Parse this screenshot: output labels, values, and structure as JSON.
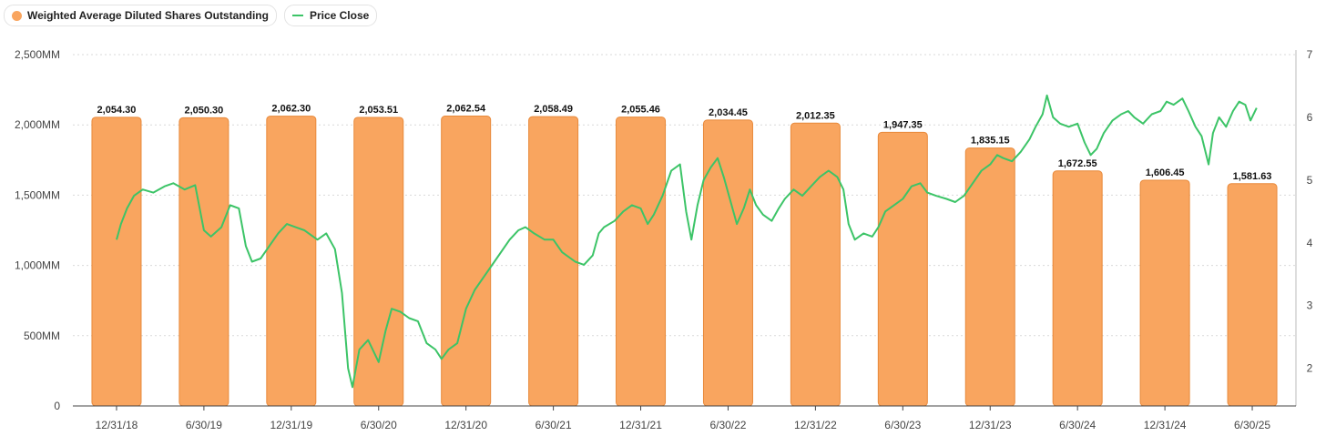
{
  "legend": {
    "bars_label": "Weighted Average Diluted Shares Outstanding",
    "line_label": "Price Close"
  },
  "colors": {
    "bar_fill": "#F9A55F",
    "bar_stroke": "#E8893A",
    "line": "#3CC467",
    "grid": "#D9D9D9",
    "axis_text": "#444444"
  },
  "chart_data": {
    "type": "bar",
    "categories": [
      "12/31/18",
      "6/30/19",
      "12/31/19",
      "6/30/20",
      "12/31/20",
      "6/30/21",
      "12/31/21",
      "6/30/22",
      "12/31/22",
      "6/30/23",
      "12/31/23",
      "6/30/24",
      "12/31/24",
      "6/30/25"
    ],
    "data_labels": [
      "2,054.30",
      "2,050.30",
      "2,062.30",
      "2,053.51",
      "2,062.54",
      "2,058.49",
      "2,055.46",
      "2,034.45",
      "2,012.35",
      "1,947.35",
      "1,835.15",
      "1,672.55",
      "1,606.45",
      "1,581.63"
    ],
    "series": [
      {
        "name": "Weighted Average Diluted Shares Outstanding",
        "type": "bar",
        "axis": "left",
        "values": [
          2054.3,
          2050.3,
          2062.3,
          2053.51,
          2062.54,
          2058.49,
          2055.46,
          2034.45,
          2012.35,
          1947.35,
          1835.15,
          1672.55,
          1606.45,
          1581.63
        ]
      },
      {
        "name": "Price Close",
        "type": "line",
        "axis": "right",
        "points": [
          [
            0,
            4.05
          ],
          [
            0.05,
            4.3
          ],
          [
            0.12,
            4.55
          ],
          [
            0.2,
            4.75
          ],
          [
            0.3,
            4.85
          ],
          [
            0.42,
            4.8
          ],
          [
            0.55,
            4.9
          ],
          [
            0.65,
            4.95
          ],
          [
            0.78,
            4.85
          ],
          [
            0.9,
            4.92
          ],
          [
            1.0,
            4.2
          ],
          [
            1.08,
            4.1
          ],
          [
            1.2,
            4.25
          ],
          [
            1.3,
            4.6
          ],
          [
            1.4,
            4.55
          ],
          [
            1.48,
            3.95
          ],
          [
            1.55,
            3.7
          ],
          [
            1.65,
            3.75
          ],
          [
            1.75,
            3.95
          ],
          [
            1.85,
            4.15
          ],
          [
            1.95,
            4.3
          ],
          [
            2.05,
            4.25
          ],
          [
            2.15,
            4.2
          ],
          [
            2.3,
            4.05
          ],
          [
            2.4,
            4.15
          ],
          [
            2.5,
            3.9
          ],
          [
            2.58,
            3.2
          ],
          [
            2.65,
            2.0
          ],
          [
            2.7,
            1.7
          ],
          [
            2.78,
            2.3
          ],
          [
            2.88,
            2.45
          ],
          [
            3.0,
            2.1
          ],
          [
            3.08,
            2.6
          ],
          [
            3.15,
            2.95
          ],
          [
            3.25,
            2.9
          ],
          [
            3.35,
            2.8
          ],
          [
            3.45,
            2.75
          ],
          [
            3.55,
            2.4
          ],
          [
            3.65,
            2.3
          ],
          [
            3.72,
            2.15
          ],
          [
            3.8,
            2.3
          ],
          [
            3.9,
            2.4
          ],
          [
            4.0,
            2.95
          ],
          [
            4.1,
            3.25
          ],
          [
            4.2,
            3.45
          ],
          [
            4.35,
            3.75
          ],
          [
            4.5,
            4.05
          ],
          [
            4.6,
            4.2
          ],
          [
            4.68,
            4.25
          ],
          [
            4.78,
            4.15
          ],
          [
            4.9,
            4.05
          ],
          [
            5.0,
            4.05
          ],
          [
            5.1,
            3.85
          ],
          [
            5.25,
            3.7
          ],
          [
            5.35,
            3.65
          ],
          [
            5.45,
            3.8
          ],
          [
            5.52,
            4.15
          ],
          [
            5.58,
            4.25
          ],
          [
            5.7,
            4.35
          ],
          [
            5.8,
            4.5
          ],
          [
            5.9,
            4.6
          ],
          [
            6.0,
            4.55
          ],
          [
            6.08,
            4.3
          ],
          [
            6.15,
            4.45
          ],
          [
            6.25,
            4.75
          ],
          [
            6.35,
            5.15
          ],
          [
            6.45,
            5.25
          ],
          [
            6.52,
            4.5
          ],
          [
            6.58,
            4.05
          ],
          [
            6.65,
            4.6
          ],
          [
            6.72,
            5.0
          ],
          [
            6.8,
            5.2
          ],
          [
            6.88,
            5.35
          ],
          [
            6.95,
            5.05
          ],
          [
            7.02,
            4.7
          ],
          [
            7.1,
            4.3
          ],
          [
            7.18,
            4.55
          ],
          [
            7.25,
            4.85
          ],
          [
            7.32,
            4.6
          ],
          [
            7.4,
            4.45
          ],
          [
            7.5,
            4.35
          ],
          [
            7.58,
            4.55
          ],
          [
            7.65,
            4.7
          ],
          [
            7.75,
            4.85
          ],
          [
            7.85,
            4.75
          ],
          [
            7.95,
            4.9
          ],
          [
            8.05,
            5.05
          ],
          [
            8.15,
            5.15
          ],
          [
            8.25,
            5.05
          ],
          [
            8.32,
            4.85
          ],
          [
            8.38,
            4.3
          ],
          [
            8.45,
            4.05
          ],
          [
            8.55,
            4.15
          ],
          [
            8.65,
            4.1
          ],
          [
            8.72,
            4.25
          ],
          [
            8.8,
            4.5
          ],
          [
            8.9,
            4.6
          ],
          [
            9.0,
            4.7
          ],
          [
            9.1,
            4.9
          ],
          [
            9.2,
            4.95
          ],
          [
            9.28,
            4.8
          ],
          [
            9.38,
            4.75
          ],
          [
            9.5,
            4.7
          ],
          [
            9.6,
            4.65
          ],
          [
            9.7,
            4.75
          ],
          [
            9.8,
            4.95
          ],
          [
            9.9,
            5.15
          ],
          [
            10.0,
            5.25
          ],
          [
            10.08,
            5.4
          ],
          [
            10.15,
            5.35
          ],
          [
            10.25,
            5.3
          ],
          [
            10.35,
            5.45
          ],
          [
            10.45,
            5.65
          ],
          [
            10.52,
            5.85
          ],
          [
            10.6,
            6.05
          ],
          [
            10.65,
            6.35
          ],
          [
            10.72,
            6.0
          ],
          [
            10.8,
            5.9
          ],
          [
            10.9,
            5.85
          ],
          [
            11.0,
            5.9
          ],
          [
            11.08,
            5.6
          ],
          [
            11.15,
            5.4
          ],
          [
            11.22,
            5.5
          ],
          [
            11.3,
            5.75
          ],
          [
            11.4,
            5.95
          ],
          [
            11.5,
            6.05
          ],
          [
            11.58,
            6.1
          ],
          [
            11.65,
            6.0
          ],
          [
            11.75,
            5.9
          ],
          [
            11.85,
            6.05
          ],
          [
            11.95,
            6.1
          ],
          [
            12.02,
            6.25
          ],
          [
            12.1,
            6.2
          ],
          [
            12.2,
            6.3
          ],
          [
            12.27,
            6.1
          ],
          [
            12.35,
            5.85
          ],
          [
            12.42,
            5.7
          ],
          [
            12.5,
            5.25
          ],
          [
            12.55,
            5.75
          ],
          [
            12.62,
            6.0
          ],
          [
            12.7,
            5.85
          ],
          [
            12.78,
            6.1
          ],
          [
            12.85,
            6.25
          ],
          [
            12.92,
            6.2
          ],
          [
            12.98,
            5.95
          ],
          [
            13.05,
            6.15
          ]
        ]
      }
    ],
    "y_left": {
      "min": 0,
      "max": 2500,
      "ticks": [
        0,
        500,
        1000,
        1500,
        2000,
        2500
      ],
      "tick_labels": [
        "0",
        "500MM",
        "1,000MM",
        "1,500MM",
        "2,000MM",
        "2,500MM"
      ]
    },
    "y_right": {
      "min": 1.4,
      "max": 7.0,
      "ticks": [
        2,
        3,
        4,
        5,
        6,
        7
      ],
      "tick_labels": [
        "2",
        "3",
        "4",
        "5",
        "6",
        "7"
      ]
    },
    "grid": true,
    "legend_position": "top-left"
  }
}
